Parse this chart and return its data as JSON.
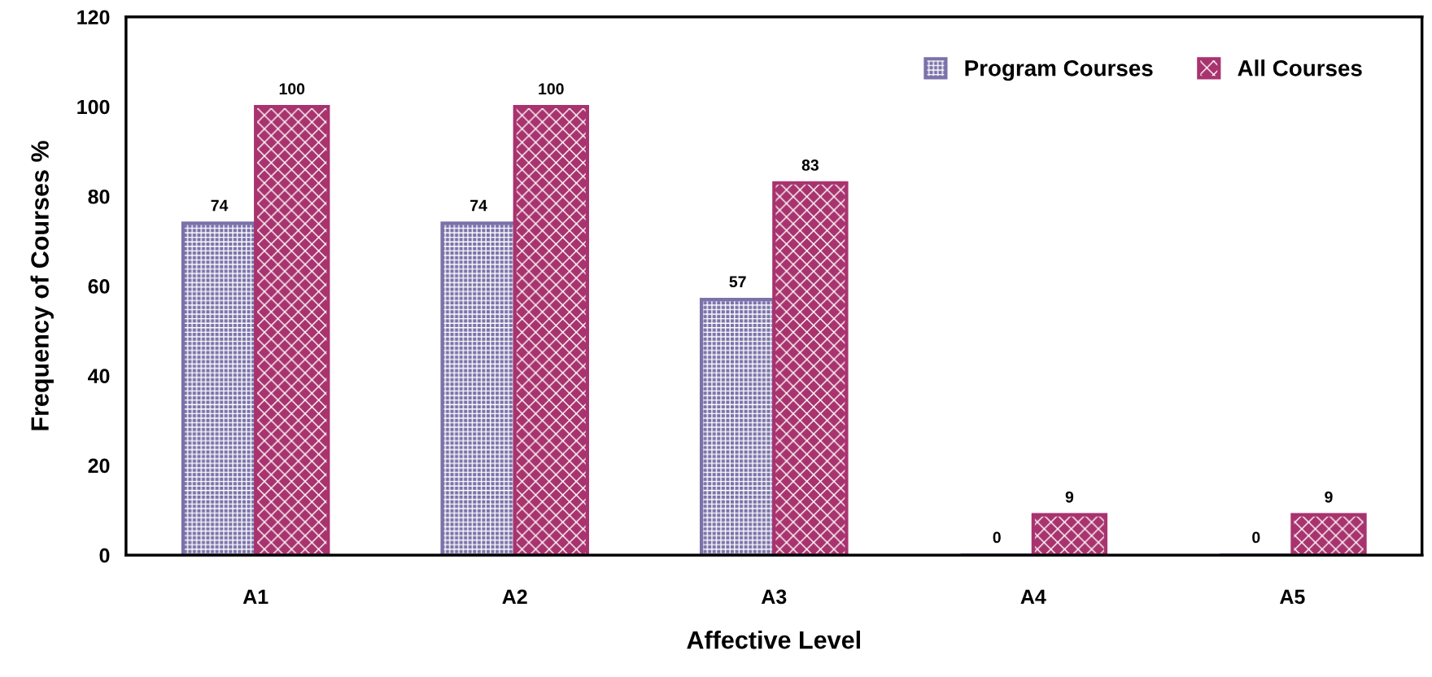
{
  "chart_data": {
    "type": "bar",
    "xlabel": "Affective Level",
    "ylabel": "Frequency of Courses %",
    "categories": [
      "A1",
      "A2",
      "A3",
      "A4",
      "A5"
    ],
    "series": [
      {
        "name": "Program Courses",
        "color": "#7b72aa",
        "values": [
          74,
          74,
          57,
          0,
          0
        ]
      },
      {
        "name": "All Courses",
        "color": "#a8336e",
        "values": [
          100,
          100,
          83,
          9,
          9
        ]
      }
    ],
    "ylim": [
      0,
      120
    ],
    "yticks": [
      0,
      20,
      40,
      60,
      80,
      100,
      120
    ],
    "data_labels": true,
    "grid": false,
    "legend": "top right"
  }
}
